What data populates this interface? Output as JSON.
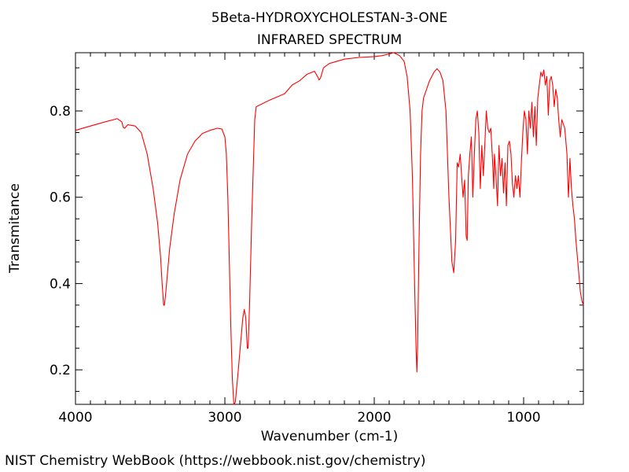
{
  "chart_data": {
    "type": "line",
    "title": "5Beta-HYDROXYCHOLESTAN-3-ONE",
    "subtitle": "INFRARED SPECTRUM",
    "xlabel": "Wavenumber (cm-1)",
    "ylabel": "Transmitance",
    "xlim": [
      4000,
      600
    ],
    "ylim": [
      0.12,
      0.935
    ],
    "x_reversed": true,
    "grid": false,
    "legend": "none",
    "x_ticks": [
      4000,
      3000,
      2000,
      1000
    ],
    "x_tick_labels": [
      "4000",
      "3000",
      "2000",
      "1000"
    ],
    "y_ticks": [
      0.2,
      0.4,
      0.6,
      0.8
    ],
    "y_tick_labels": [
      "0.2",
      "0.4",
      "0.6",
      "0.8"
    ],
    "series": [
      {
        "color": "#ff0000",
        "points": [
          [
            4000,
            0.755
          ],
          [
            3900,
            0.765
          ],
          [
            3800,
            0.775
          ],
          [
            3720,
            0.782
          ],
          [
            3690,
            0.775
          ],
          [
            3680,
            0.762
          ],
          [
            3670,
            0.76
          ],
          [
            3650,
            0.768
          ],
          [
            3600,
            0.765
          ],
          [
            3560,
            0.75
          ],
          [
            3520,
            0.7
          ],
          [
            3480,
            0.62
          ],
          [
            3450,
            0.54
          ],
          [
            3430,
            0.46
          ],
          [
            3420,
            0.4
          ],
          [
            3415,
            0.375
          ],
          [
            3410,
            0.35
          ],
          [
            3405,
            0.35
          ],
          [
            3395,
            0.38
          ],
          [
            3370,
            0.48
          ],
          [
            3340,
            0.56
          ],
          [
            3300,
            0.64
          ],
          [
            3250,
            0.7
          ],
          [
            3200,
            0.73
          ],
          [
            3150,
            0.748
          ],
          [
            3100,
            0.755
          ],
          [
            3050,
            0.76
          ],
          [
            3020,
            0.758
          ],
          [
            3000,
            0.74
          ],
          [
            2990,
            0.7
          ],
          [
            2980,
            0.6
          ],
          [
            2970,
            0.45
          ],
          [
            2960,
            0.3
          ],
          [
            2950,
            0.18
          ],
          [
            2940,
            0.12
          ],
          [
            2930,
            0.125
          ],
          [
            2910,
            0.2
          ],
          [
            2890,
            0.28
          ],
          [
            2880,
            0.32
          ],
          [
            2870,
            0.34
          ],
          [
            2860,
            0.32
          ],
          [
            2850,
            0.25
          ],
          [
            2845,
            0.25
          ],
          [
            2835,
            0.35
          ],
          [
            2820,
            0.55
          ],
          [
            2800,
            0.78
          ],
          [
            2790,
            0.81
          ],
          [
            2700,
            0.825
          ],
          [
            2600,
            0.84
          ],
          [
            2550,
            0.86
          ],
          [
            2500,
            0.87
          ],
          [
            2450,
            0.885
          ],
          [
            2400,
            0.892
          ],
          [
            2380,
            0.88
          ],
          [
            2370,
            0.872
          ],
          [
            2360,
            0.876
          ],
          [
            2340,
            0.9
          ],
          [
            2300,
            0.91
          ],
          [
            2200,
            0.92
          ],
          [
            2100,
            0.924
          ],
          [
            2000,
            0.926
          ],
          [
            1950,
            0.928
          ],
          [
            1900,
            0.932
          ],
          [
            1870,
            0.935
          ],
          [
            1830,
            0.928
          ],
          [
            1800,
            0.915
          ],
          [
            1780,
            0.88
          ],
          [
            1760,
            0.8
          ],
          [
            1745,
            0.65
          ],
          [
            1730,
            0.4
          ],
          [
            1720,
            0.25
          ],
          [
            1715,
            0.195
          ],
          [
            1710,
            0.25
          ],
          [
            1700,
            0.5
          ],
          [
            1690,
            0.7
          ],
          [
            1680,
            0.8
          ],
          [
            1670,
            0.83
          ],
          [
            1650,
            0.85
          ],
          [
            1630,
            0.87
          ],
          [
            1600,
            0.89
          ],
          [
            1580,
            0.898
          ],
          [
            1560,
            0.89
          ],
          [
            1540,
            0.87
          ],
          [
            1520,
            0.8
          ],
          [
            1500,
            0.6
          ],
          [
            1480,
            0.45
          ],
          [
            1468,
            0.425
          ],
          [
            1455,
            0.5
          ],
          [
            1445,
            0.68
          ],
          [
            1435,
            0.67
          ],
          [
            1425,
            0.7
          ],
          [
            1415,
            0.65
          ],
          [
            1405,
            0.6
          ],
          [
            1395,
            0.64
          ],
          [
            1385,
            0.51
          ],
          [
            1378,
            0.5
          ],
          [
            1370,
            0.65
          ],
          [
            1360,
            0.7
          ],
          [
            1350,
            0.74
          ],
          [
            1340,
            0.6
          ],
          [
            1330,
            0.7
          ],
          [
            1320,
            0.78
          ],
          [
            1310,
            0.8
          ],
          [
            1300,
            0.75
          ],
          [
            1290,
            0.62
          ],
          [
            1280,
            0.72
          ],
          [
            1270,
            0.65
          ],
          [
            1260,
            0.72
          ],
          [
            1250,
            0.8
          ],
          [
            1240,
            0.76
          ],
          [
            1230,
            0.75
          ],
          [
            1220,
            0.76
          ],
          [
            1210,
            0.7
          ],
          [
            1200,
            0.62
          ],
          [
            1195,
            0.7
          ],
          [
            1185,
            0.65
          ],
          [
            1175,
            0.58
          ],
          [
            1165,
            0.72
          ],
          [
            1155,
            0.65
          ],
          [
            1145,
            0.69
          ],
          [
            1135,
            0.61
          ],
          [
            1125,
            0.68
          ],
          [
            1115,
            0.58
          ],
          [
            1105,
            0.72
          ],
          [
            1095,
            0.73
          ],
          [
            1085,
            0.7
          ],
          [
            1075,
            0.63
          ],
          [
            1065,
            0.6
          ],
          [
            1055,
            0.65
          ],
          [
            1045,
            0.62
          ],
          [
            1035,
            0.65
          ],
          [
            1025,
            0.6
          ],
          [
            1015,
            0.68
          ],
          [
            1005,
            0.75
          ],
          [
            995,
            0.8
          ],
          [
            985,
            0.78
          ],
          [
            975,
            0.7
          ],
          [
            965,
            0.8
          ],
          [
            955,
            0.76
          ],
          [
            945,
            0.82
          ],
          [
            935,
            0.74
          ],
          [
            925,
            0.81
          ],
          [
            915,
            0.72
          ],
          [
            905,
            0.83
          ],
          [
            895,
            0.86
          ],
          [
            885,
            0.89
          ],
          [
            875,
            0.88
          ],
          [
            865,
            0.895
          ],
          [
            855,
            0.86
          ],
          [
            845,
            0.88
          ],
          [
            835,
            0.79
          ],
          [
            825,
            0.87
          ],
          [
            815,
            0.88
          ],
          [
            805,
            0.86
          ],
          [
            795,
            0.81
          ],
          [
            785,
            0.85
          ],
          [
            775,
            0.83
          ],
          [
            765,
            0.78
          ],
          [
            755,
            0.74
          ],
          [
            745,
            0.78
          ],
          [
            735,
            0.77
          ],
          [
            725,
            0.76
          ],
          [
            710,
            0.7
          ],
          [
            700,
            0.6
          ],
          [
            695,
            0.64
          ],
          [
            690,
            0.69
          ],
          [
            680,
            0.62
          ],
          [
            670,
            0.58
          ],
          [
            660,
            0.55
          ],
          [
            650,
            0.5
          ],
          [
            640,
            0.46
          ],
          [
            630,
            0.42
          ],
          [
            620,
            0.38
          ],
          [
            610,
            0.36
          ],
          [
            600,
            0.35
          ]
        ]
      }
    ]
  },
  "footer": "NIST Chemistry WebBook (https://webbook.nist.gov/chemistry)"
}
